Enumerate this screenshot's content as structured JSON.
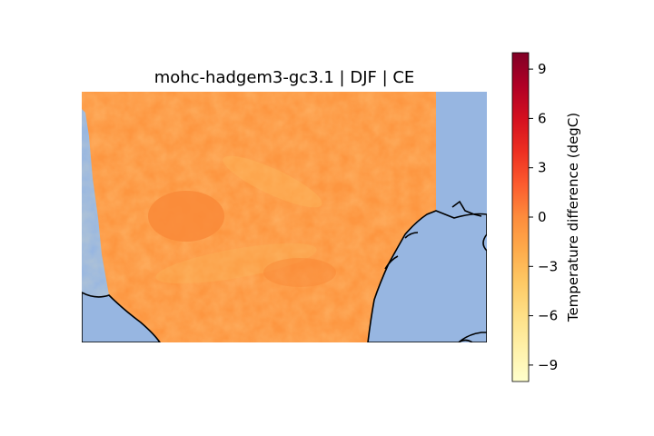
{
  "title": "mohc-hadgem3-gc3.1 | DJF | CE",
  "colorbar": {
    "label": "Temperature difference (degC)",
    "ticks": [
      "9",
      "6",
      "3",
      "0",
      "−3",
      "−6",
      "−9"
    ],
    "range": [
      -10,
      10
    ],
    "colormap": "YlOrRd",
    "colors": [
      "#ffffcc",
      "#fff1a9",
      "#fee087",
      "#fec965",
      "#feab4b",
      "#fd8c3c",
      "#fc5b2e",
      "#ed2f21",
      "#d41020",
      "#b00026",
      "#800026"
    ]
  },
  "map": {
    "ocean_color": "#97b6e1",
    "field_color": "#fd9640",
    "coastline_color": "#000000"
  }
}
